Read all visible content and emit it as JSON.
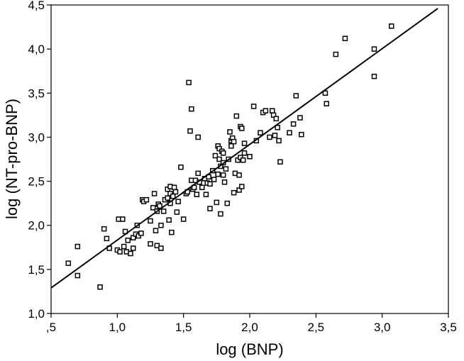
{
  "chart_data": {
    "type": "scatter",
    "xlabel": "log (BNP)",
    "ylabel": "log (NT-pro-BNP)",
    "xlim": [
      0.5,
      3.5
    ],
    "ylim": [
      1.0,
      4.5
    ],
    "x_ticks": [
      ",5",
      "1,0",
      "1,5",
      "2,0",
      "2,5",
      "3,0",
      "3,5"
    ],
    "y_ticks": [
      "1,0",
      "1,5",
      "2,0",
      "2,5",
      "3,0",
      "3,5",
      "4,0",
      "4,5"
    ],
    "grid": false,
    "legend": "none",
    "marker": "open-square",
    "fit_line": {
      "x": [
        0.5,
        3.42
      ],
      "y": [
        1.29,
        4.46
      ]
    },
    "points": [
      [
        0.63,
        1.57
      ],
      [
        0.7,
        1.76
      ],
      [
        0.7,
        1.43
      ],
      [
        0.87,
        1.3
      ],
      [
        0.9,
        1.96
      ],
      [
        0.92,
        1.85
      ],
      [
        0.94,
        1.74
      ],
      [
        1.0,
        1.72
      ],
      [
        1.01,
        2.07
      ],
      [
        1.02,
        1.7
      ],
      [
        1.04,
        2.07
      ],
      [
        1.05,
        1.76
      ],
      [
        1.06,
        1.93
      ],
      [
        1.07,
        1.7
      ],
      [
        1.08,
        1.83
      ],
      [
        1.1,
        1.68
      ],
      [
        1.12,
        1.86
      ],
      [
        1.12,
        1.74
      ],
      [
        1.14,
        1.9
      ],
      [
        1.15,
        2.0
      ],
      [
        1.16,
        1.88
      ],
      [
        1.18,
        1.91
      ],
      [
        1.19,
        2.29
      ],
      [
        1.2,
        2.27
      ],
      [
        1.22,
        2.29
      ],
      [
        1.25,
        2.05
      ],
      [
        1.25,
        1.79
      ],
      [
        1.27,
        2.2
      ],
      [
        1.28,
        2.36
      ],
      [
        1.29,
        1.94
      ],
      [
        1.3,
        1.77
      ],
      [
        1.3,
        2.16
      ],
      [
        1.31,
        2.24
      ],
      [
        1.32,
        2.22
      ],
      [
        1.33,
        1.74
      ],
      [
        1.33,
        2.0
      ],
      [
        1.35,
        2.16
      ],
      [
        1.36,
        2.29
      ],
      [
        1.38,
        2.41
      ],
      [
        1.38,
        2.31
      ],
      [
        1.39,
        2.06
      ],
      [
        1.4,
        2.25
      ],
      [
        1.4,
        2.44
      ],
      [
        1.4,
        2.36
      ],
      [
        1.41,
        1.92
      ],
      [
        1.42,
        2.33
      ],
      [
        1.43,
        2.43
      ],
      [
        1.44,
        2.38
      ],
      [
        1.45,
        2.15
      ],
      [
        1.46,
        2.27
      ],
      [
        1.48,
        2.66
      ],
      [
        1.5,
        2.07
      ],
      [
        1.52,
        2.36
      ],
      [
        1.53,
        2.38
      ],
      [
        1.54,
        3.62
      ],
      [
        1.55,
        3.07
      ],
      [
        1.56,
        3.32
      ],
      [
        1.56,
        2.51
      ],
      [
        1.57,
        2.41
      ],
      [
        1.58,
        2.43
      ],
      [
        1.59,
        2.51
      ],
      [
        1.6,
        2.35
      ],
      [
        1.61,
        2.59
      ],
      [
        1.61,
        3.0
      ],
      [
        1.62,
        2.49
      ],
      [
        1.64,
        2.43
      ],
      [
        1.66,
        2.53
      ],
      [
        1.67,
        2.35
      ],
      [
        1.68,
        2.48
      ],
      [
        1.69,
        2.55
      ],
      [
        1.7,
        2.19
      ],
      [
        1.7,
        2.47
      ],
      [
        1.72,
        2.62
      ],
      [
        1.73,
        2.52
      ],
      [
        1.74,
        2.79
      ],
      [
        1.75,
        2.26
      ],
      [
        1.76,
        2.58
      ],
      [
        1.76,
        2.9
      ],
      [
        1.77,
        2.75
      ],
      [
        1.77,
        2.87
      ],
      [
        1.78,
        2.67
      ],
      [
        1.78,
        2.13
      ],
      [
        1.79,
        2.84
      ],
      [
        1.8,
        2.82
      ],
      [
        1.8,
        2.71
      ],
      [
        1.8,
        2.57
      ],
      [
        1.81,
        2.49
      ],
      [
        1.82,
        2.64
      ],
      [
        1.83,
        2.25
      ],
      [
        1.84,
        2.75
      ],
      [
        1.85,
        3.06
      ],
      [
        1.86,
        2.9
      ],
      [
        1.86,
        2.96
      ],
      [
        1.87,
        2.99
      ],
      [
        1.88,
        2.37
      ],
      [
        1.88,
        2.95
      ],
      [
        1.89,
        2.59
      ],
      [
        1.9,
        3.24
      ],
      [
        1.91,
        2.74
      ],
      [
        1.92,
        2.57
      ],
      [
        1.92,
        2.4
      ],
      [
        1.93,
        3.12
      ],
      [
        1.93,
        2.77
      ],
      [
        1.94,
        3.1
      ],
      [
        1.94,
        2.44
      ],
      [
        1.95,
        2.74
      ],
      [
        1.96,
        2.82
      ],
      [
        1.96,
        2.93
      ],
      [
        2.0,
        2.78
      ],
      [
        2.03,
        3.35
      ],
      [
        2.05,
        2.96
      ],
      [
        2.08,
        3.05
      ],
      [
        2.1,
        3.28
      ],
      [
        2.12,
        3.3
      ],
      [
        2.15,
        3.0
      ],
      [
        2.17,
        3.3
      ],
      [
        2.18,
        3.25
      ],
      [
        2.19,
        3.02
      ],
      [
        2.2,
        3.21
      ],
      [
        2.21,
        3.11
      ],
      [
        2.22,
        2.96
      ],
      [
        2.23,
        2.72
      ],
      [
        2.3,
        3.05
      ],
      [
        2.33,
        3.15
      ],
      [
        2.35,
        3.47
      ],
      [
        2.38,
        3.22
      ],
      [
        2.39,
        3.03
      ],
      [
        2.57,
        3.5
      ],
      [
        2.58,
        3.38
      ],
      [
        2.65,
        3.94
      ],
      [
        2.72,
        4.12
      ],
      [
        2.94,
        4.0
      ],
      [
        2.94,
        3.69
      ],
      [
        3.07,
        4.26
      ]
    ]
  }
}
